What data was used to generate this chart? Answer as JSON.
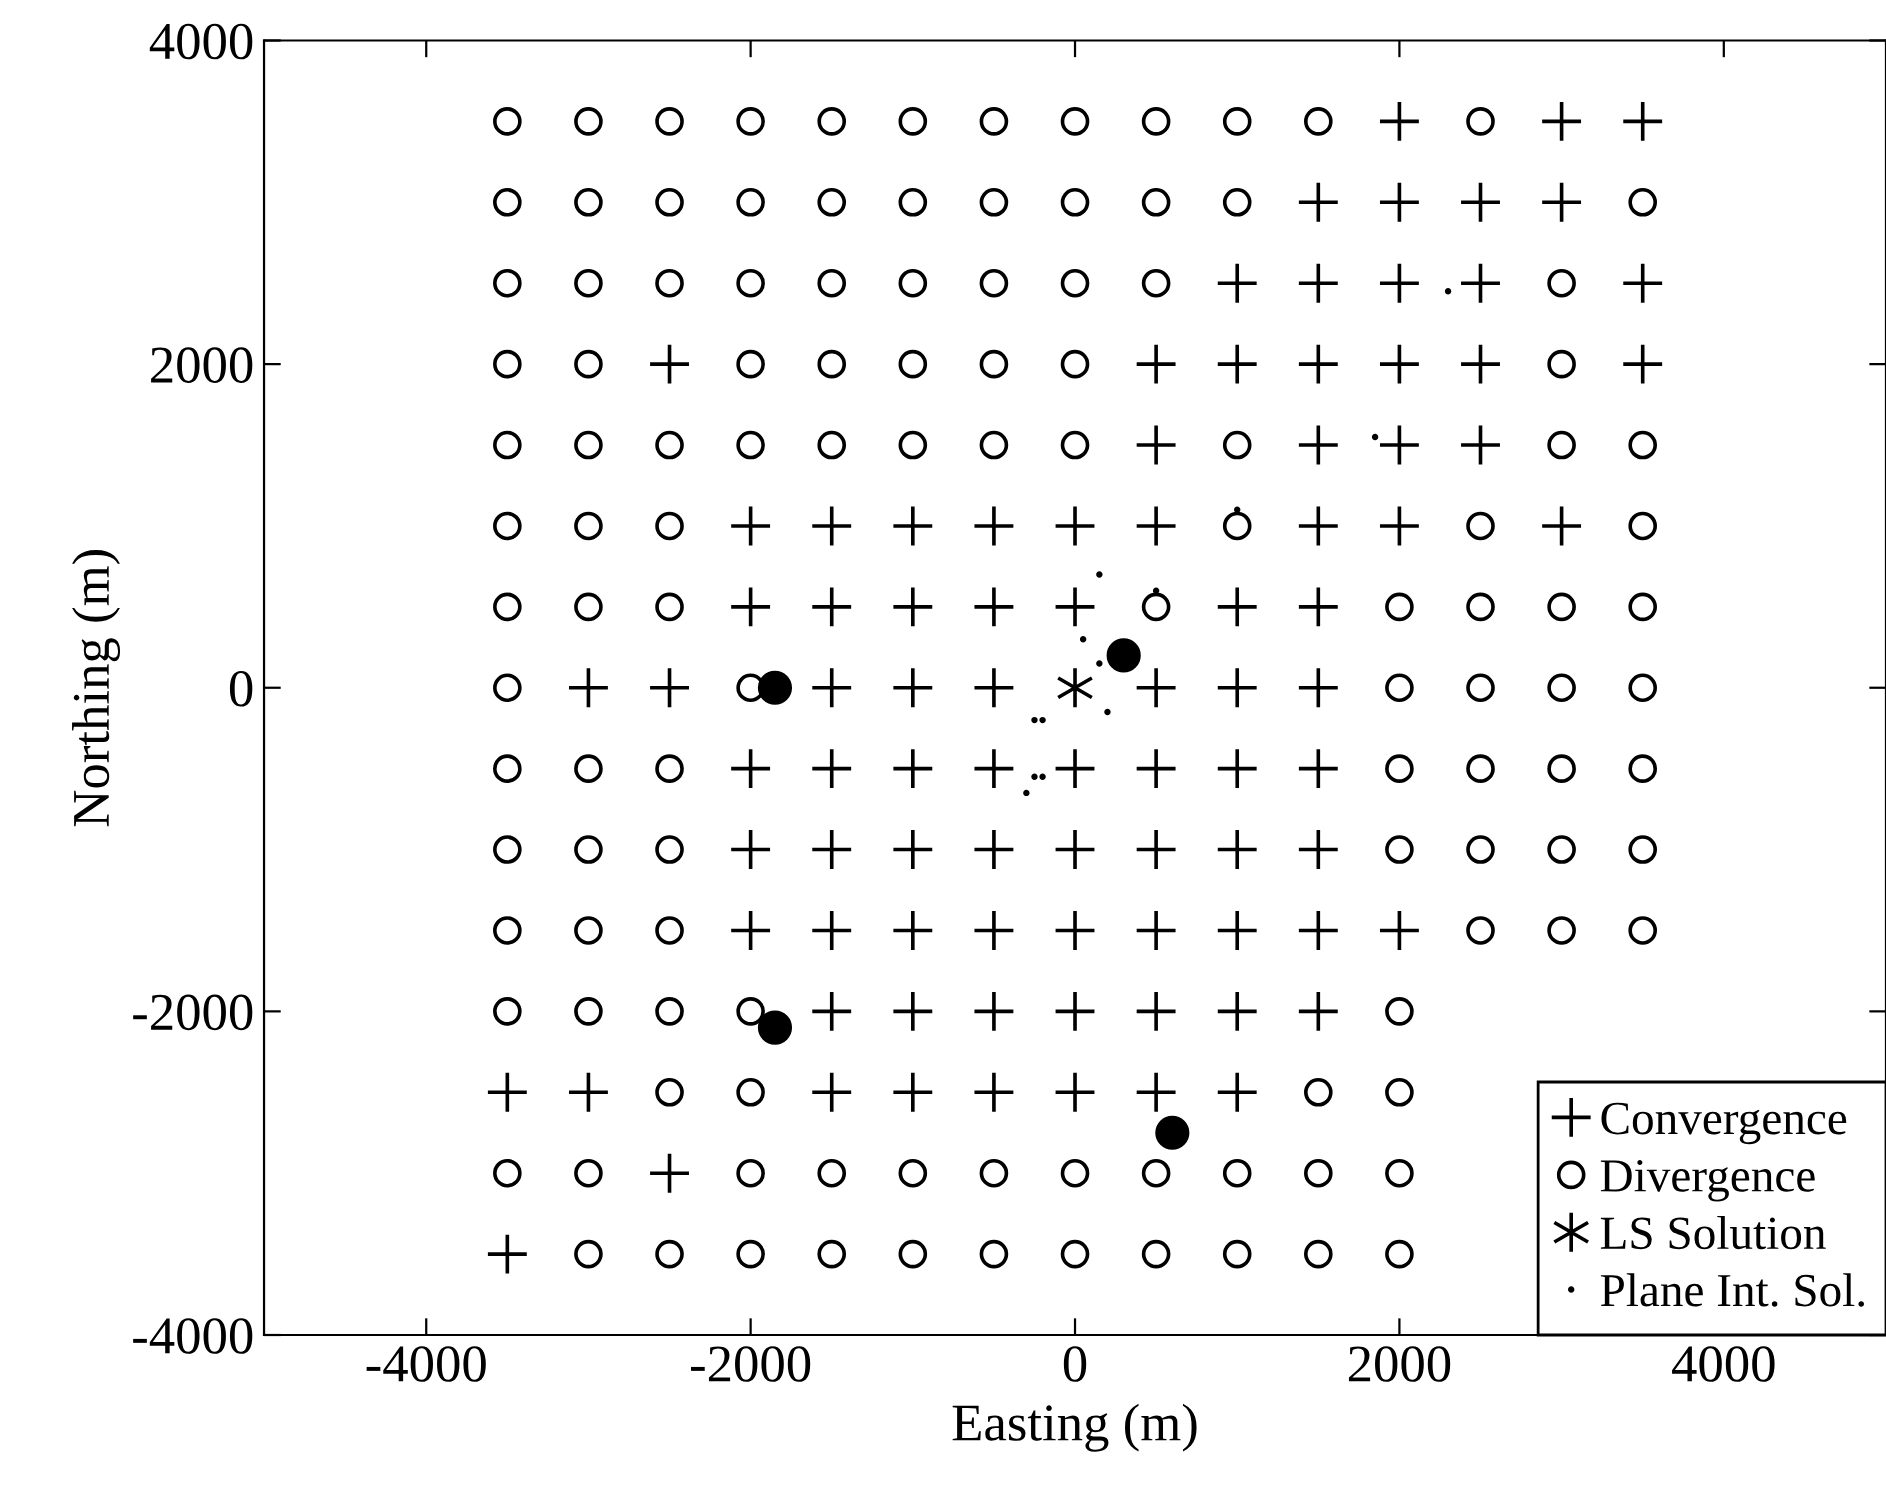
{
  "chart_data": {
    "type": "scatter",
    "xlabel": "Easting (m)",
    "ylabel": "Northing (m)",
    "xlim": [
      -5000,
      5000
    ],
    "ylim": [
      -4000,
      4000
    ],
    "xticks": [
      -4000,
      -2000,
      0,
      2000,
      4000
    ],
    "yticks": [
      -4000,
      -2000,
      0,
      2000,
      4000
    ],
    "legend": "bottom right",
    "series": [
      {
        "name": "Convergence",
        "marker": "cross",
        "color": "#000000",
        "x": [
          2000,
          3000,
          3500,
          1500,
          2000,
          2500,
          3000,
          1000,
          1500,
          2000,
          2500,
          3500,
          -2500,
          500,
          1000,
          1500,
          2000,
          2500,
          3500,
          500,
          1500,
          2000,
          2500,
          -2000,
          -1500,
          -1000,
          -500,
          0,
          500,
          1500,
          2000,
          3000,
          -2000,
          -1500,
          -1000,
          -500,
          0,
          1000,
          1500,
          -3000,
          -2500,
          -1500,
          -1000,
          -500,
          500,
          1000,
          1500,
          -2000,
          -1500,
          -1000,
          -500,
          0,
          500,
          1000,
          1500,
          -2000,
          -1500,
          -1000,
          -500,
          0,
          500,
          1000,
          1500,
          -2000,
          -1500,
          -1000,
          -500,
          0,
          500,
          1000,
          1500,
          2000,
          -1500,
          -1000,
          -500,
          0,
          500,
          1000,
          1500,
          -3500,
          -3000,
          -1500,
          -1000,
          -500,
          0,
          500,
          1000,
          -2500,
          -3500
        ],
        "values": [
          3500,
          3500,
          3500,
          3000,
          3000,
          3000,
          3000,
          2500,
          2500,
          2500,
          2500,
          2500,
          2000,
          2000,
          2000,
          2000,
          2000,
          2000,
          2000,
          1500,
          1500,
          1500,
          1500,
          1000,
          1000,
          1000,
          1000,
          1000,
          1000,
          1000,
          1000,
          1000,
          500,
          500,
          500,
          500,
          500,
          500,
          500,
          0,
          0,
          0,
          0,
          0,
          0,
          0,
          0,
          -500,
          -500,
          -500,
          -500,
          -500,
          -500,
          -500,
          -500,
          -1000,
          -1000,
          -1000,
          -1000,
          -1000,
          -1000,
          -1000,
          -1000,
          -1500,
          -1500,
          -1500,
          -1500,
          -1500,
          -1500,
          -1500,
          -1500,
          -1500,
          -2000,
          -2000,
          -2000,
          -2000,
          -2000,
          -2000,
          -2000,
          -2500,
          -2500,
          -2500,
          -2500,
          -2500,
          -2500,
          -2500,
          -2500,
          -3000,
          -3500
        ]
      },
      {
        "name": "Divergence",
        "marker": "circle",
        "color": "#000000",
        "x": [
          -3500,
          -3000,
          -2500,
          -2000,
          -1500,
          -1000,
          -500,
          0,
          500,
          1000,
          1500,
          2500,
          -3500,
          -3000,
          -2500,
          -2000,
          -1500,
          -1000,
          -500,
          0,
          500,
          1000,
          3500,
          -3500,
          -3000,
          -2500,
          -2000,
          -1500,
          -1000,
          -500,
          0,
          500,
          3000,
          -3500,
          -3000,
          -2000,
          -1500,
          -1000,
          -500,
          0,
          3000,
          -3500,
          -3000,
          -2500,
          -2000,
          -1500,
          -1000,
          -500,
          0,
          1000,
          3000,
          3500,
          -3500,
          -3000,
          -2500,
          1000,
          2500,
          3500,
          -3500,
          -3000,
          -2500,
          500,
          2000,
          2500,
          3000,
          3500,
          -3500,
          -2000,
          2000,
          2500,
          3000,
          3500,
          -3500,
          -3000,
          -2500,
          2000,
          2500,
          3000,
          3500,
          -3500,
          -3000,
          -2500,
          2000,
          2500,
          3000,
          3500,
          -3500,
          -3000,
          -2500,
          2500,
          3000,
          3500,
          -3500,
          -3000,
          -2500,
          -2000,
          2000,
          -2500,
          -2000,
          1500,
          2000,
          -3500,
          -3000,
          -2000,
          -1500,
          -1000,
          -500,
          0,
          500,
          1000,
          1500,
          2000,
          -3000,
          -2500,
          -2000,
          -1500,
          -1000,
          -500,
          0,
          500,
          1000,
          1500,
          2000
        ],
        "values": [
          3500,
          3500,
          3500,
          3500,
          3500,
          3500,
          3500,
          3500,
          3500,
          3500,
          3500,
          3500,
          3000,
          3000,
          3000,
          3000,
          3000,
          3000,
          3000,
          3000,
          3000,
          3000,
          3000,
          2500,
          2500,
          2500,
          2500,
          2500,
          2500,
          2500,
          2500,
          2500,
          2500,
          2000,
          2000,
          2000,
          2000,
          2000,
          2000,
          2000,
          2000,
          1500,
          1500,
          1500,
          1500,
          1500,
          1500,
          1500,
          1500,
          1500,
          1500,
          1500,
          1000,
          1000,
          1000,
          1000,
          1000,
          1000,
          500,
          500,
          500,
          500,
          500,
          500,
          500,
          500,
          0,
          0,
          0,
          0,
          0,
          0,
          -500,
          -500,
          -500,
          -500,
          -500,
          -500,
          -500,
          -1000,
          -1000,
          -1000,
          -1000,
          -1000,
          -1000,
          -1000,
          -1500,
          -1500,
          -1500,
          -1500,
          -1500,
          -1500,
          -2000,
          -2000,
          -2000,
          -2000,
          -2000,
          -2500,
          -2500,
          -2500,
          -2500,
          -3000,
          -3000,
          -3000,
          -3000,
          -3000,
          -3000,
          -3000,
          -3000,
          -3000,
          -3000,
          -3000,
          -3500,
          -3500,
          -3500,
          -3500,
          -3500,
          -3500,
          -3500,
          -3500,
          -3500,
          -3500,
          -3500
        ]
      },
      {
        "name": "LS Solution",
        "color": "#000000",
        "x": [
          0
        ],
        "values": [
          0
        ]
      },
      {
        "name": "Plane Int. Sol.",
        "marker": "point",
        "color": "#000000",
        "x": [
          2300,
          1850,
          150,
          50,
          150,
          200,
          -250,
          -200,
          -300,
          -250,
          -200,
          1000,
          500
        ],
        "values": [
          2450,
          1550,
          700,
          300,
          150,
          -150,
          -200,
          -200,
          -650,
          -550,
          -550,
          1100,
          600
        ]
      },
      {
        "marker": "circle",
        "color": "#000000",
        "x": [
          -1850,
          300,
          -1850,
          600
        ],
        "values": [
          0,
          200,
          -2100,
          -2750
        ]
      }
    ]
  }
}
